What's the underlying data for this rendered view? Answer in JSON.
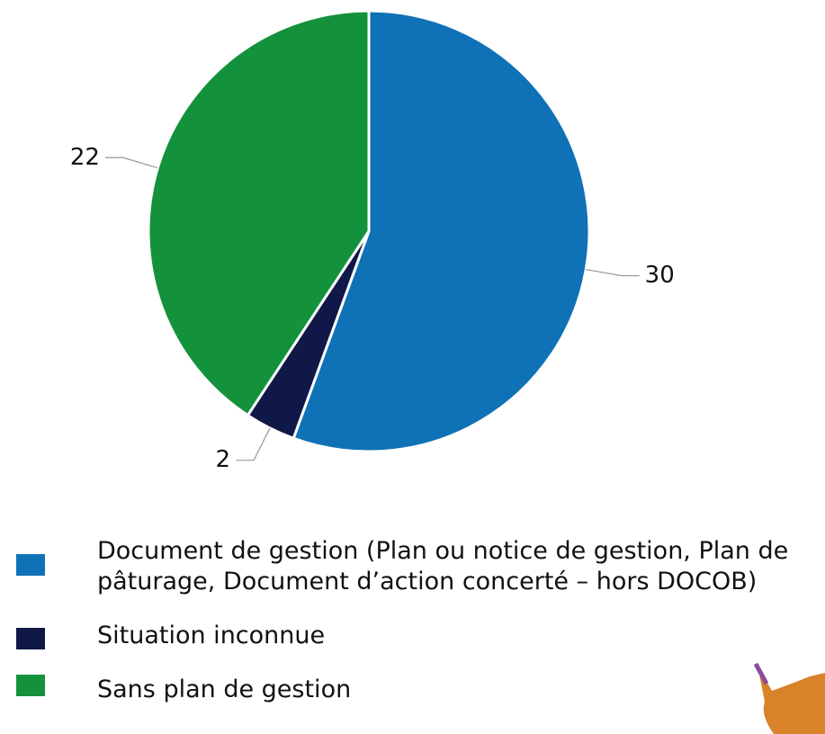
{
  "chart_data": {
    "type": "pie",
    "categories": [
      "Document de gestion (Plan ou notice de gestion, Plan de pâturage, Document d’action concerté – hors DOCOB)",
      "Situation inconnue",
      "Sans plan de gestion"
    ],
    "values": [
      30,
      2,
      22
    ],
    "colors": [
      "#0f72b7",
      "#101848",
      "#13923b"
    ]
  }
}
